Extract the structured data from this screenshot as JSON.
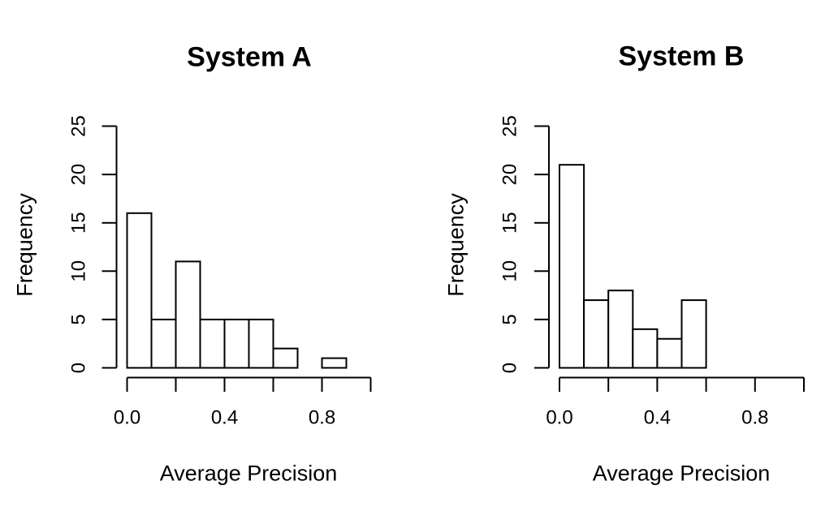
{
  "page": {
    "background": "#ffffff",
    "text_color": "#000000"
  },
  "chart_data": [
    {
      "type": "bar",
      "subtype": "histogram",
      "title": "System A",
      "xlabel": "Average Precision",
      "ylabel": "Frequency",
      "bin_start": 0.0,
      "bin_width": 0.1,
      "values": [
        16,
        5,
        11,
        5,
        5,
        5,
        2,
        0,
        1
      ],
      "xlim": [
        0.0,
        1.0
      ],
      "ylim": [
        0,
        25
      ],
      "grid": false,
      "legend": null,
      "x_ticks": [
        {
          "value": 0.0,
          "label": "0.0"
        },
        {
          "value": 0.2,
          "label": ""
        },
        {
          "value": 0.4,
          "label": "0.4"
        },
        {
          "value": 0.6,
          "label": ""
        },
        {
          "value": 0.8,
          "label": "0.8"
        },
        {
          "value": 1.0,
          "label": ""
        }
      ],
      "y_ticks": [
        {
          "value": 0,
          "label": "0"
        },
        {
          "value": 5,
          "label": "5"
        },
        {
          "value": 10,
          "label": "10"
        },
        {
          "value": 15,
          "label": "15"
        },
        {
          "value": 20,
          "label": "20"
        },
        {
          "value": 25,
          "label": "25"
        }
      ],
      "bar_fill": "#ffffff",
      "bar_stroke": "#000000",
      "axis_color": "#000000"
    },
    {
      "type": "bar",
      "subtype": "histogram",
      "title": "System B",
      "xlabel": "Average Precision",
      "ylabel": "Frequency",
      "bin_start": 0.0,
      "bin_width": 0.1,
      "values": [
        21,
        7,
        8,
        4,
        3,
        7
      ],
      "xlim": [
        0.0,
        1.0
      ],
      "ylim": [
        0,
        25
      ],
      "grid": false,
      "legend": null,
      "x_ticks": [
        {
          "value": 0.0,
          "label": "0.0"
        },
        {
          "value": 0.2,
          "label": ""
        },
        {
          "value": 0.4,
          "label": "0.4"
        },
        {
          "value": 0.6,
          "label": ""
        },
        {
          "value": 0.8,
          "label": "0.8"
        },
        {
          "value": 1.0,
          "label": ""
        }
      ],
      "y_ticks": [
        {
          "value": 0,
          "label": "0"
        },
        {
          "value": 5,
          "label": "5"
        },
        {
          "value": 10,
          "label": "10"
        },
        {
          "value": 15,
          "label": "15"
        },
        {
          "value": 20,
          "label": "20"
        },
        {
          "value": 25,
          "label": "25"
        }
      ],
      "bar_fill": "#ffffff",
      "bar_stroke": "#000000",
      "axis_color": "#000000"
    }
  ]
}
